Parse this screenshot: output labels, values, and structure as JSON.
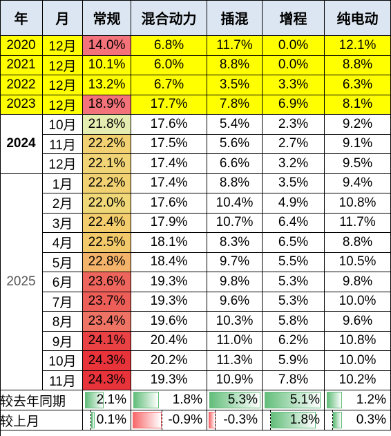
{
  "headers": [
    "年",
    "月",
    "常规",
    "混合动力",
    "插混",
    "增程",
    "纯电动"
  ],
  "rows": [
    {
      "year": "2020",
      "month": "12月",
      "values": [
        "14.0%",
        "6.8%",
        "11.7%",
        "0.0%",
        "12.1%"
      ],
      "highlight": true,
      "heat": 14.0
    },
    {
      "year": "2021",
      "month": "12月",
      "values": [
        "10.1%",
        "6.0%",
        "8.8%",
        "0.0%",
        "8.8%"
      ],
      "highlight": true,
      "heat": 10.1
    },
    {
      "year": "2022",
      "month": "12月",
      "values": [
        "13.2%",
        "6.7%",
        "3.5%",
        "3.3%",
        "6.3%"
      ],
      "highlight": true,
      "heat": 13.2
    },
    {
      "year": "2023",
      "month": "12月",
      "values": [
        "18.9%",
        "17.7%",
        "7.8%",
        "6.9%",
        "8.1%"
      ],
      "highlight": true,
      "heat": 18.9
    },
    {
      "year": "2024",
      "month": "10月",
      "values": [
        "21.8%",
        "17.6%",
        "5.4%",
        "2.3%",
        "9.2%"
      ],
      "heat": 21.8
    },
    {
      "year": "",
      "month": "11月",
      "values": [
        "22.2%",
        "17.5%",
        "5.6%",
        "2.7%",
        "9.1%"
      ],
      "heat": 22.2
    },
    {
      "year": "",
      "month": "12月",
      "values": [
        "22.1%",
        "17.4%",
        "6.6%",
        "3.2%",
        "9.5%"
      ],
      "heat": 22.1
    },
    {
      "year": "2025",
      "month": "1月",
      "values": [
        "22.2%",
        "17.4%",
        "8.8%",
        "3.5%",
        "9.4%"
      ],
      "heat": 22.2
    },
    {
      "year": "",
      "month": "2月",
      "values": [
        "22.0%",
        "17.6%",
        "10.4%",
        "4.9%",
        "10.8%"
      ],
      "heat": 22.0
    },
    {
      "year": "",
      "month": "3月",
      "values": [
        "22.4%",
        "17.9%",
        "10.7%",
        "6.4%",
        "11.7%"
      ],
      "heat": 22.4
    },
    {
      "year": "",
      "month": "4月",
      "values": [
        "22.5%",
        "18.1%",
        "8.3%",
        "6.5%",
        "8.8%"
      ],
      "heat": 22.5
    },
    {
      "year": "",
      "month": "5月",
      "values": [
        "22.8%",
        "18.4%",
        "9.7%",
        "5.5%",
        "10.5%"
      ],
      "heat": 22.8
    },
    {
      "year": "",
      "month": "6月",
      "values": [
        "23.6%",
        "19.3%",
        "9.8%",
        "5.3%",
        "9.8%"
      ],
      "heat": 23.6
    },
    {
      "year": "",
      "month": "7月",
      "values": [
        "23.7%",
        "19.3%",
        "9.6%",
        "5.3%",
        "10.0%"
      ],
      "heat": 23.7
    },
    {
      "year": "",
      "month": "8月",
      "values": [
        "23.4%",
        "19.6%",
        "10.3%",
        "5.8%",
        "9.6%"
      ],
      "heat": 23.4
    },
    {
      "year": "",
      "month": "9月",
      "values": [
        "24.1%",
        "20.4%",
        "11.0%",
        "6.2%",
        "10.8%"
      ],
      "heat": 24.1
    },
    {
      "year": "",
      "month": "10月",
      "values": [
        "24.3%",
        "20.2%",
        "11.3%",
        "5.9%",
        "10.0%"
      ],
      "heat": 24.3
    },
    {
      "year": "",
      "month": "11月",
      "values": [
        "24.3%",
        "19.3%",
        "10.9%",
        "7.8%",
        "10.2%"
      ],
      "heat": 24.3
    }
  ],
  "summary": [
    {
      "label": "较去年同期",
      "values": [
        "2.1%",
        "1.8%",
        "5.3%",
        "5.1%",
        "1.2%"
      ],
      "numbers": [
        2.1,
        1.8,
        5.3,
        5.1,
        1.2
      ]
    },
    {
      "label": "较上月",
      "values": [
        "0.1%",
        "-0.9%",
        "-0.3%",
        "1.8%",
        "0.3%"
      ],
      "numbers": [
        0.1,
        -0.9,
        -0.3,
        1.8,
        0.3
      ]
    }
  ],
  "colors": {
    "header_bg": "#dce6f2",
    "highlight": "#ffff00",
    "heat_low": "#e6edb0",
    "heat_mid": "#f4d06a",
    "heat_high": "#e8333a",
    "bar_pos": "#63be7b",
    "bar_neg": "#f8696b"
  }
}
